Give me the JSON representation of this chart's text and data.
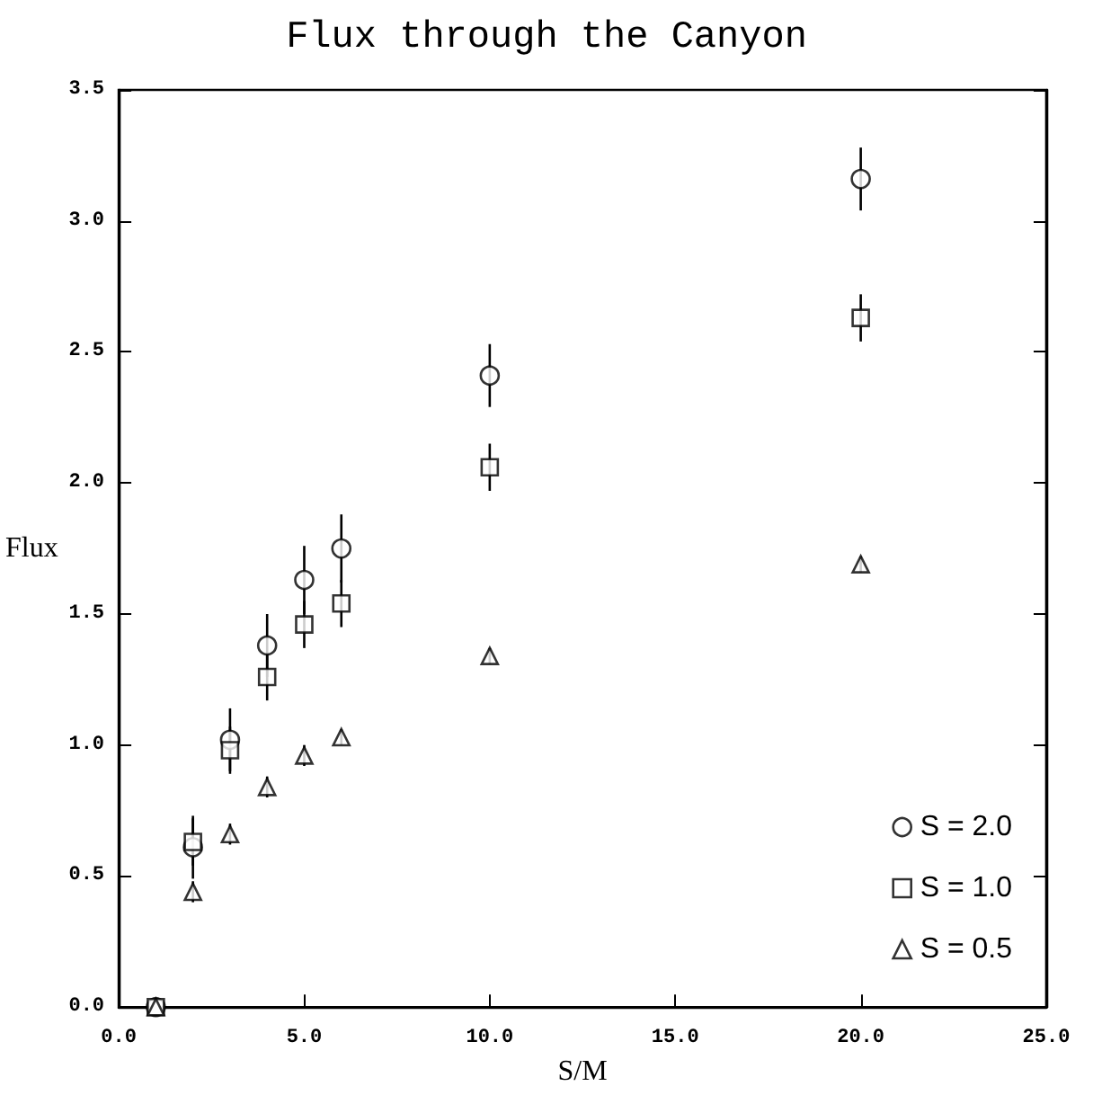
{
  "chart_data": {
    "type": "scatter",
    "title": "Flux through the Canyon",
    "xlabel": "S/M",
    "ylabel": "Flux",
    "x": [
      1,
      2,
      3,
      4,
      5,
      6,
      10,
      20
    ],
    "series": [
      {
        "name": "S = 2.0",
        "color": "#000000",
        "marker": "circle",
        "values": [
          0.0,
          0.61,
          1.02,
          1.38,
          1.63,
          1.75,
          2.41,
          3.16
        ],
        "errors": [
          null,
          0.12,
          0.12,
          0.12,
          0.13,
          0.13,
          0.12,
          0.12
        ]
      },
      {
        "name": "S = 1.0",
        "color": "#000000",
        "marker": "square",
        "values": [
          0.0,
          0.63,
          0.98,
          1.26,
          1.46,
          1.54,
          2.06,
          2.63
        ],
        "errors": [
          null,
          0.09,
          0.09,
          0.09,
          0.09,
          0.09,
          0.09,
          0.09
        ]
      },
      {
        "name": "S = 0.5",
        "color": "#000000",
        "marker": "triangle",
        "values": [
          0.0,
          0.44,
          0.66,
          0.84,
          0.96,
          1.03,
          1.34,
          1.69
        ],
        "errors": [
          null,
          0.04,
          0.04,
          0.04,
          0.04,
          0.03,
          0.03,
          0.03
        ]
      }
    ],
    "xlim": [
      0,
      25
    ],
    "xticks": [
      {
        "value": 0,
        "label": "0.0"
      },
      {
        "value": 5,
        "label": "5.0"
      },
      {
        "value": 10,
        "label": "10.0"
      },
      {
        "value": 15,
        "label": "15.0"
      },
      {
        "value": 20,
        "label": "20.0"
      },
      {
        "value": 25,
        "label": "25.0"
      }
    ],
    "ylim": [
      0,
      3.5
    ],
    "yticks": [
      {
        "value": 0,
        "label": "0.0"
      },
      {
        "value": 0.5,
        "label": "0.5"
      },
      {
        "value": 1,
        "label": "1.0"
      },
      {
        "value": 1.5,
        "label": "1.5"
      },
      {
        "value": 2,
        "label": "2.0"
      },
      {
        "value": 2.5,
        "label": "2.5"
      },
      {
        "value": 3,
        "label": "3.0"
      },
      {
        "value": 3.5,
        "label": "3.5"
      }
    ],
    "grid": false,
    "legend": "bottom right"
  }
}
